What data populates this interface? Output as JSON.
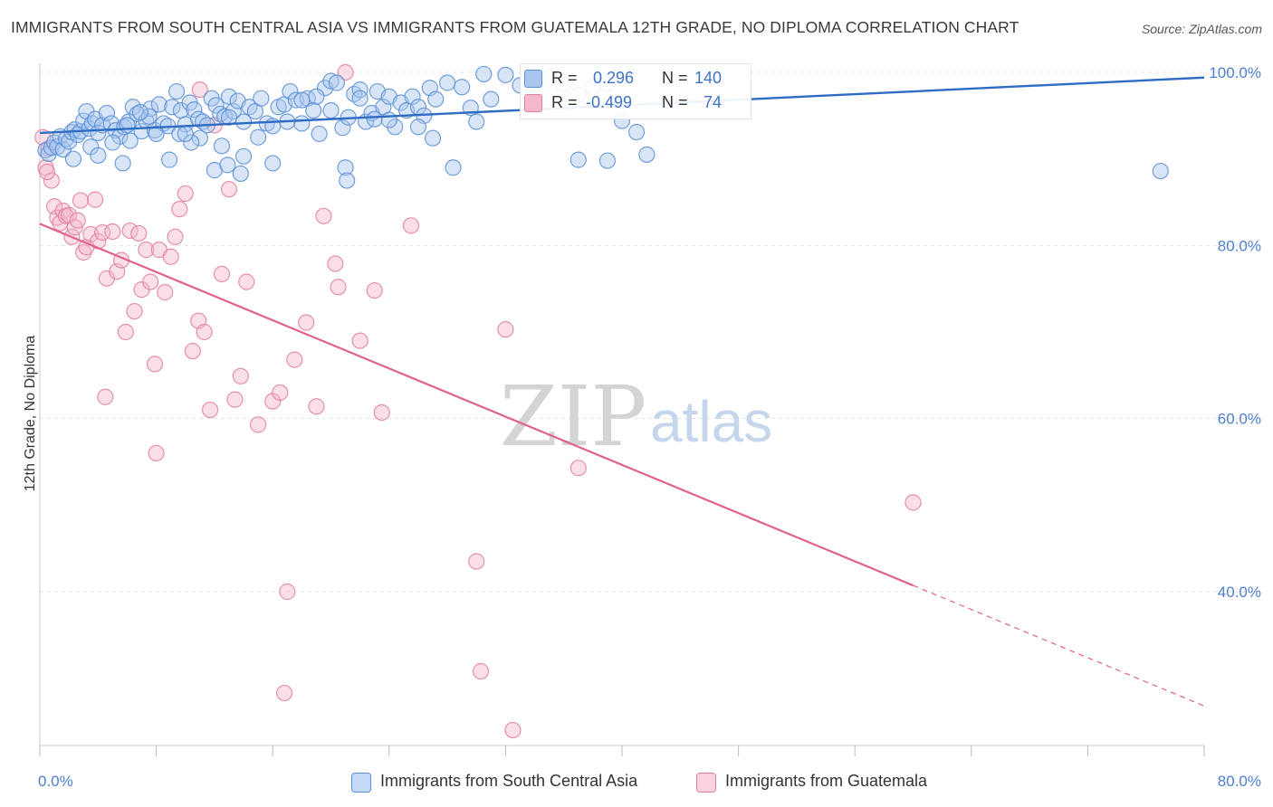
{
  "header": {
    "title": "IMMIGRANTS FROM SOUTH CENTRAL ASIA VS IMMIGRANTS FROM GUATEMALA 12TH GRADE, NO DIPLOMA CORRELATION CHART",
    "source": "Source: ZipAtlas.com"
  },
  "legend": {
    "r_label": "R =",
    "n_label": "N =",
    "series1_r": "0.296",
    "series1_n": "140",
    "series2_r": "-0.499",
    "series2_n": "74"
  },
  "watermark": {
    "zip": "ZIP",
    "atlas": "atlas"
  },
  "colors": {
    "blue_fill": "#a9c6ee",
    "blue_stroke": "#5b8fd6",
    "blue_line": "#2f6cc4",
    "pink_fill": "#f5b8ca",
    "pink_stroke": "#e07f9f",
    "pink_line": "#e0628c",
    "tick_text": "#4d7fd0",
    "grid": "#e3e3e3"
  },
  "chart_data": {
    "type": "scatter",
    "title": "IMMIGRANTS FROM SOUTH CENTRAL ASIA VS IMMIGRANTS FROM GUATEMALA 12TH GRADE, NO DIPLOMA CORRELATION CHART",
    "xlabel": "",
    "ylabel": "12th Grade, No Diploma",
    "xlim": [
      0,
      80
    ],
    "ylim": [
      20,
      102
    ],
    "x_ticks": [
      "0.0%",
      "80.0%"
    ],
    "y_ticks": [
      "100.0%",
      "80.0%",
      "60.0%",
      "40.0%"
    ],
    "y_tick_values": [
      100,
      80,
      60,
      40
    ],
    "grid": true,
    "legend_position": "bottom",
    "series": [
      {
        "name": "Immigrants from South Central Asia",
        "color": "#a9c6ee",
        "r": 0.296,
        "n": 140,
        "trend": {
          "x": [
            0,
            80
          ],
          "y": [
            93.0,
            99.4
          ],
          "dashed_from": null
        },
        "points": [
          [
            0.4,
            91.0
          ],
          [
            0.6,
            90.6
          ],
          [
            0.8,
            91.3
          ],
          [
            1.0,
            91.9
          ],
          [
            1.2,
            91.4
          ],
          [
            1.4,
            92.6
          ],
          [
            1.6,
            91.1
          ],
          [
            1.8,
            92.3
          ],
          [
            2.0,
            92.0
          ],
          [
            2.2,
            93.1
          ],
          [
            2.4,
            93.4
          ],
          [
            2.6,
            92.8
          ],
          [
            2.8,
            93.2
          ],
          [
            3.0,
            94.4
          ],
          [
            3.2,
            95.5
          ],
          [
            3.4,
            93.5
          ],
          [
            3.6,
            94.1
          ],
          [
            3.8,
            94.6
          ],
          [
            4.0,
            93.0
          ],
          [
            4.3,
            93.9
          ],
          [
            4.6,
            95.3
          ],
          [
            4.9,
            94.1
          ],
          [
            5.2,
            93.3
          ],
          [
            5.5,
            92.6
          ],
          [
            5.8,
            93.7
          ],
          [
            6.1,
            94.3
          ],
          [
            6.4,
            96.0
          ],
          [
            6.7,
            95.2
          ],
          [
            7.0,
            93.2
          ],
          [
            7.3,
            94.4
          ],
          [
            7.6,
            95.8
          ],
          [
            7.9,
            93.3
          ],
          [
            8.2,
            96.3
          ],
          [
            8.5,
            94.1
          ],
          [
            8.8,
            93.8
          ],
          [
            9.1,
            96.0
          ],
          [
            9.4,
            97.8
          ],
          [
            9.7,
            95.6
          ],
          [
            10.0,
            94.0
          ],
          [
            10.3,
            96.5
          ],
          [
            10.6,
            95.7
          ],
          [
            10.9,
            94.6
          ],
          [
            11.2,
            94.3
          ],
          [
            11.5,
            93.9
          ],
          [
            11.8,
            97.0
          ],
          [
            12.1,
            96.2
          ],
          [
            12.4,
            95.2
          ],
          [
            12.7,
            94.9
          ],
          [
            13.0,
            97.2
          ],
          [
            13.3,
            95.5
          ],
          [
            13.6,
            96.7
          ],
          [
            14.0,
            94.3
          ],
          [
            14.4,
            96.0
          ],
          [
            14.8,
            95.5
          ],
          [
            15.2,
            97.0
          ],
          [
            15.6,
            94.1
          ],
          [
            16.0,
            93.8
          ],
          [
            16.4,
            96.0
          ],
          [
            16.8,
            96.3
          ],
          [
            17.2,
            97.8
          ],
          [
            17.6,
            96.8
          ],
          [
            18.0,
            94.1
          ],
          [
            18.4,
            97.0
          ],
          [
            18.8,
            95.6
          ],
          [
            19.2,
            92.9
          ],
          [
            19.6,
            98.2
          ],
          [
            20.0,
            99.0
          ],
          [
            20.4,
            98.8
          ],
          [
            20.8,
            93.6
          ],
          [
            21.2,
            94.8
          ],
          [
            21.6,
            97.5
          ],
          [
            22.0,
            98.0
          ],
          [
            22.4,
            94.3
          ],
          [
            22.8,
            95.3
          ],
          [
            23.2,
            97.8
          ],
          [
            23.6,
            96.0
          ],
          [
            24.0,
            97.2
          ],
          [
            24.4,
            93.7
          ],
          [
            24.8,
            96.5
          ],
          [
            25.2,
            95.6
          ],
          [
            25.6,
            97.2
          ],
          [
            26.0,
            96.0
          ],
          [
            26.4,
            95.0
          ],
          [
            26.8,
            98.2
          ],
          [
            27.2,
            96.9
          ],
          [
            28.0,
            98.8
          ],
          [
            28.4,
            89.0
          ],
          [
            29.0,
            98.3
          ],
          [
            29.6,
            95.9
          ],
          [
            30.0,
            94.3
          ],
          [
            30.5,
            99.8
          ],
          [
            31.0,
            96.9
          ],
          [
            32.0,
            99.7
          ],
          [
            33.0,
            98.5
          ],
          [
            34.0,
            97.5
          ],
          [
            35.0,
            99.4
          ],
          [
            36.0,
            98.6
          ],
          [
            37.0,
            97.4
          ],
          [
            38.0,
            98.3
          ],
          [
            39.0,
            98.7
          ],
          [
            40.0,
            94.4
          ],
          [
            41.0,
            93.1
          ],
          [
            13.8,
            88.3
          ],
          [
            12.0,
            88.7
          ],
          [
            3.5,
            91.4
          ],
          [
            5.0,
            91.9
          ],
          [
            6.2,
            92.1
          ],
          [
            2.3,
            90.0
          ],
          [
            8.0,
            92.9
          ],
          [
            11.0,
            92.4
          ],
          [
            15.0,
            92.5
          ],
          [
            9.6,
            92.9
          ],
          [
            14.0,
            90.3
          ],
          [
            17.0,
            94.3
          ],
          [
            19.0,
            97.2
          ],
          [
            23.0,
            94.6
          ],
          [
            26.0,
            93.7
          ],
          [
            13.0,
            94.8
          ],
          [
            7.5,
            94.9
          ],
          [
            6.0,
            93.9
          ],
          [
            8.9,
            89.9
          ],
          [
            10.4,
            91.9
          ],
          [
            18.0,
            96.8
          ],
          [
            20.0,
            95.6
          ],
          [
            22.0,
            97.0
          ],
          [
            4.0,
            90.4
          ],
          [
            5.7,
            89.5
          ],
          [
            6.9,
            95.4
          ],
          [
            10.0,
            92.9
          ],
          [
            27.0,
            92.4
          ],
          [
            24.0,
            94.5
          ],
          [
            12.5,
            91.5
          ],
          [
            16.0,
            89.5
          ],
          [
            21.0,
            89.0
          ],
          [
            37.0,
            89.9
          ],
          [
            39.0,
            89.8
          ],
          [
            41.7,
            90.5
          ],
          [
            21.1,
            87.5
          ],
          [
            12.9,
            89.3
          ],
          [
            77.0,
            88.6
          ]
        ]
      },
      {
        "name": "Immigrants from Guatemala",
        "color": "#f5b8ca",
        "r": -0.499,
        "n": 74,
        "trend": {
          "x": [
            0,
            80
          ],
          "y": [
            82.5,
            26.8
          ],
          "dashed_from": 60
        },
        "points": [
          [
            0.2,
            92.5
          ],
          [
            0.4,
            89.0
          ],
          [
            0.6,
            91.2
          ],
          [
            0.8,
            87.5
          ],
          [
            1.0,
            84.5
          ],
          [
            1.2,
            83.2
          ],
          [
            1.4,
            82.6
          ],
          [
            1.6,
            84.0
          ],
          [
            1.8,
            83.4
          ],
          [
            2.0,
            83.5
          ],
          [
            2.2,
            81.0
          ],
          [
            2.4,
            82.1
          ],
          [
            2.6,
            82.9
          ],
          [
            2.8,
            85.2
          ],
          [
            3.0,
            79.2
          ],
          [
            3.2,
            79.8
          ],
          [
            3.5,
            81.3
          ],
          [
            3.8,
            85.3
          ],
          [
            4.0,
            80.5
          ],
          [
            4.3,
            81.5
          ],
          [
            4.6,
            76.2
          ],
          [
            5.0,
            81.6
          ],
          [
            5.3,
            77.0
          ],
          [
            5.6,
            78.3
          ],
          [
            5.9,
            70.0
          ],
          [
            6.2,
            81.7
          ],
          [
            6.5,
            72.4
          ],
          [
            6.8,
            81.4
          ],
          [
            7.0,
            74.9
          ],
          [
            7.3,
            79.5
          ],
          [
            7.6,
            75.8
          ],
          [
            7.9,
            66.3
          ],
          [
            8.2,
            79.5
          ],
          [
            8.6,
            74.6
          ],
          [
            9.0,
            78.7
          ],
          [
            9.3,
            81.0
          ],
          [
            9.6,
            84.2
          ],
          [
            10.0,
            86.0
          ],
          [
            10.5,
            67.8
          ],
          [
            10.9,
            71.3
          ],
          [
            11.3,
            70.0
          ],
          [
            11.7,
            61.0
          ],
          [
            12.0,
            93.9
          ],
          [
            12.5,
            76.7
          ],
          [
            13.0,
            86.5
          ],
          [
            13.4,
            62.2
          ],
          [
            13.8,
            64.9
          ],
          [
            14.2,
            75.8
          ],
          [
            15.0,
            59.3
          ],
          [
            16.0,
            62.0
          ],
          [
            16.5,
            63.0
          ],
          [
            17.5,
            66.8
          ],
          [
            18.3,
            71.1
          ],
          [
            19.0,
            61.4
          ],
          [
            19.5,
            83.4
          ],
          [
            20.3,
            77.9
          ],
          [
            20.5,
            75.2
          ],
          [
            21.0,
            100.0
          ],
          [
            22.0,
            69.0
          ],
          [
            23.0,
            74.8
          ],
          [
            23.5,
            60.7
          ],
          [
            25.5,
            82.3
          ],
          [
            30.0,
            43.5
          ],
          [
            30.3,
            30.8
          ],
          [
            32.0,
            70.3
          ],
          [
            32.5,
            24.0
          ],
          [
            37.0,
            54.3
          ],
          [
            60.0,
            50.3
          ],
          [
            11.0,
            98.0
          ],
          [
            4.5,
            62.5
          ],
          [
            8.0,
            56.0
          ],
          [
            17.0,
            40.0
          ],
          [
            16.8,
            28.3
          ],
          [
            0.5,
            88.5
          ]
        ]
      }
    ]
  }
}
